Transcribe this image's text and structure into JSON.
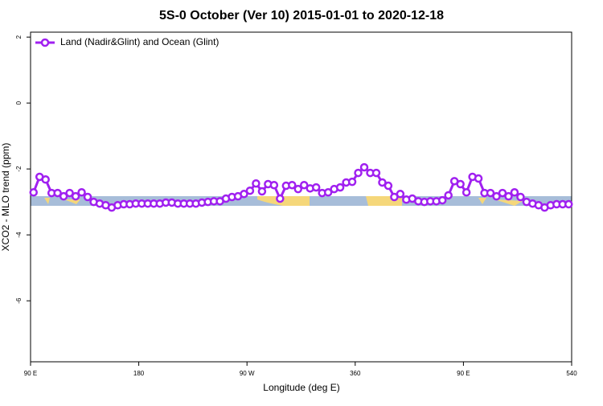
{
  "chart_data": {
    "type": "line",
    "title": "5S-0 October (Ver 10)   2015-01-01 to 2020-12-18",
    "xlabel": "Longitude (deg E)",
    "ylabel": "XCO2 - MLO trend (ppm)",
    "x": [
      92.5,
      97.5,
      102.5,
      107.5,
      112.5,
      117.5,
      122.5,
      127.5,
      132.5,
      137.5,
      142.5,
      147.5,
      152.5,
      157.5,
      162.5,
      167.5,
      172.5,
      177.5,
      182.5,
      187.5,
      192.5,
      197.5,
      202.5,
      207.5,
      212.5,
      217.5,
      222.5,
      227.5,
      232.5,
      237.5,
      242.5,
      247.5,
      252.5,
      257.5,
      262.5,
      267.5,
      272.5,
      277.5,
      282.5,
      287.5,
      292.5,
      297.5,
      302.5,
      307.5,
      312.5,
      317.5,
      322.5,
      327.5,
      332.5,
      337.5,
      342.5,
      347.5,
      352.5,
      357.5,
      362.5,
      367.5,
      372.5,
      377.5,
      382.5,
      387.5,
      392.5,
      397.5,
      402.5,
      407.5,
      412.5,
      417.5,
      422.5,
      427.5,
      432.5,
      437.5,
      442.5,
      447.5,
      452.5,
      457.5,
      462.5,
      467.5,
      472.5,
      477.5,
      482.5,
      487.5,
      492.5,
      497.5,
      502.5,
      507.5,
      512.5,
      517.5,
      522.5,
      527.5,
      532.5,
      537.5
    ],
    "series": [
      {
        "name": "Land (Nadir&Glint) and Ocean (Glint)",
        "color": "#a020f0",
        "values": [
          -2.71,
          -2.24,
          -2.32,
          -2.73,
          -2.73,
          -2.83,
          -2.73,
          -2.83,
          -2.71,
          -2.85,
          -3.0,
          -3.05,
          -3.1,
          -3.17,
          -3.1,
          -3.07,
          -3.07,
          -3.05,
          -3.05,
          -3.05,
          -3.05,
          -3.05,
          -3.02,
          -3.02,
          -3.05,
          -3.05,
          -3.05,
          -3.05,
          -3.02,
          -3.0,
          -2.98,
          -2.98,
          -2.9,
          -2.85,
          -2.83,
          -2.76,
          -2.66,
          -2.44,
          -2.68,
          -2.46,
          -2.49,
          -2.9,
          -2.51,
          -2.49,
          -2.61,
          -2.49,
          -2.59,
          -2.56,
          -2.73,
          -2.71,
          -2.61,
          -2.56,
          -2.41,
          -2.39,
          -2.12,
          -1.95,
          -2.12,
          -2.12,
          -2.41,
          -2.51,
          -2.85,
          -2.76,
          -2.93,
          -2.9,
          -2.98,
          -3.0,
          -2.98,
          -2.98,
          -2.95,
          -2.8,
          -2.37,
          -2.46,
          -2.71,
          -2.24,
          -2.29,
          -2.73,
          -2.73,
          -2.83,
          -2.73,
          -2.83,
          -2.71,
          -2.85,
          -3.0,
          -3.05,
          -3.1,
          -3.17,
          -3.1,
          -3.07,
          -3.07,
          -3.07
        ]
      }
    ],
    "xlim": [
      90,
      540
    ],
    "xticks": [
      {
        "value": 90,
        "label": "90 E"
      },
      180,
      {
        "value": 270,
        "label": "90 W"
      },
      360,
      {
        "value": 450,
        "label": "90 E"
      },
      540
    ],
    "ylim": [
      -7.85,
      2.15
    ],
    "yticks": [
      2,
      0,
      -2,
      -4,
      -6
    ],
    "legend": "top-left"
  }
}
